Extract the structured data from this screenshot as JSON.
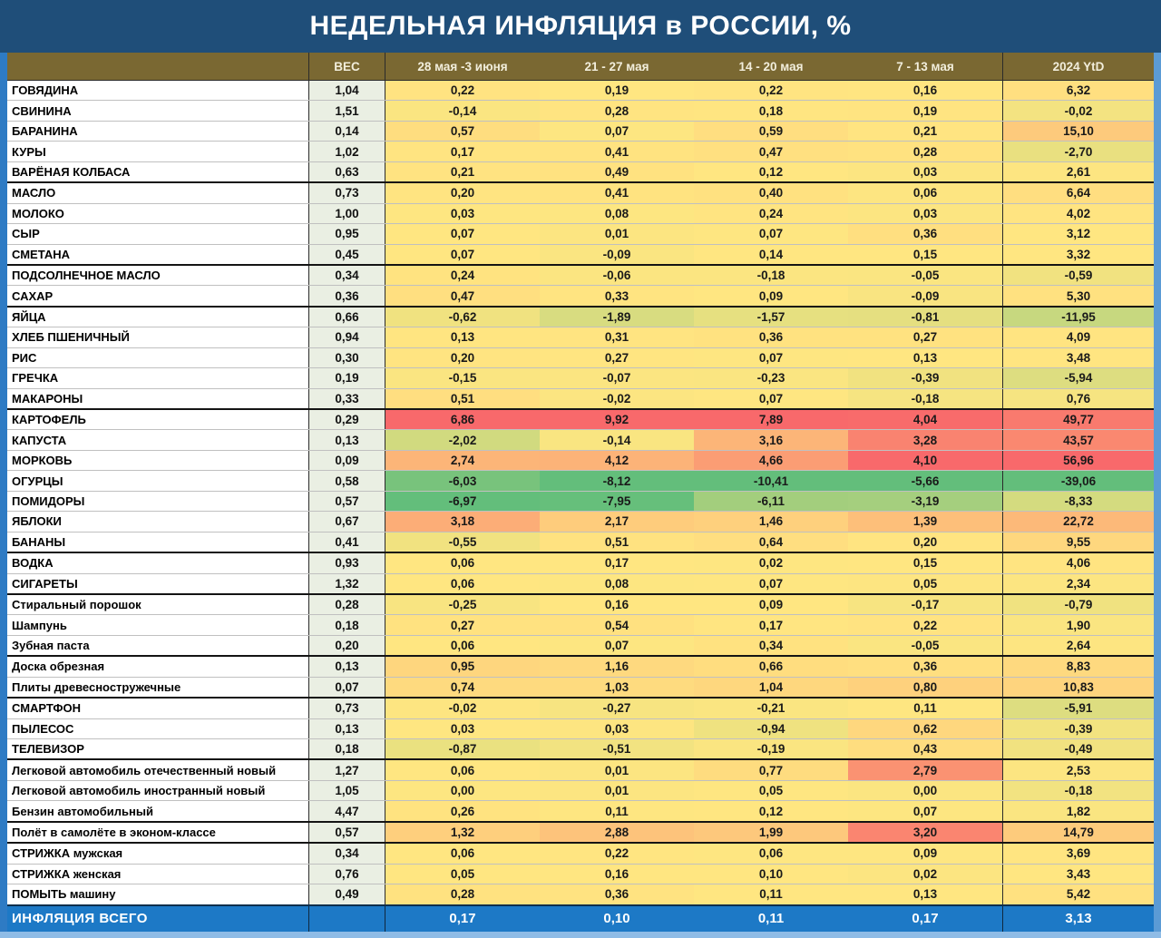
{
  "chart_data": {
    "type": "heatmap",
    "title": "НЕДЕЛЬНАЯ ИНФЛЯЦИЯ в РОССИИ, %",
    "columns": [
      "ВЕС",
      "28 мая -3 июня",
      "21 - 27 мая",
      "14 - 20 мая",
      "7 - 13 мая",
      "2024 YtD"
    ],
    "legend_note": "cell fill = 3-color scale per column: green(min) / yellow(median) / red(max)",
    "rows": [
      {
        "label": "ГОВЯДИНА",
        "sep": false,
        "values": [
          "1,04",
          "0,22",
          "0,19",
          "0,22",
          "0,16",
          "6,32"
        ]
      },
      {
        "label": "СВИНИНА",
        "sep": false,
        "values": [
          "1,51",
          "-0,14",
          "0,28",
          "0,18",
          "0,19",
          "-0,02"
        ]
      },
      {
        "label": "БАРАНИНА",
        "sep": false,
        "values": [
          "0,14",
          "0,57",
          "0,07",
          "0,59",
          "0,21",
          "15,10"
        ]
      },
      {
        "label": "КУРЫ",
        "sep": false,
        "values": [
          "1,02",
          "0,17",
          "0,41",
          "0,47",
          "0,28",
          "-2,70"
        ]
      },
      {
        "label": "ВАРЁНАЯ КОЛБАСА",
        "sep": false,
        "values": [
          "0,63",
          "0,21",
          "0,49",
          "0,12",
          "0,03",
          "2,61"
        ]
      },
      {
        "label": "МАСЛО",
        "sep": true,
        "values": [
          "0,73",
          "0,20",
          "0,41",
          "0,40",
          "0,06",
          "6,64"
        ]
      },
      {
        "label": "МОЛОКО",
        "sep": false,
        "values": [
          "1,00",
          "0,03",
          "0,08",
          "0,24",
          "0,03",
          "4,02"
        ]
      },
      {
        "label": "СЫР",
        "sep": false,
        "values": [
          "0,95",
          "0,07",
          "0,01",
          "0,07",
          "0,36",
          "3,12"
        ]
      },
      {
        "label": "СМЕТАНА",
        "sep": false,
        "values": [
          "0,45",
          "0,07",
          "-0,09",
          "0,14",
          "0,15",
          "3,32"
        ]
      },
      {
        "label": "ПОДСОЛНЕЧНОЕ МАСЛО",
        "sep": true,
        "values": [
          "0,34",
          "0,24",
          "-0,06",
          "-0,18",
          "-0,05",
          "-0,59"
        ]
      },
      {
        "label": "САХАР",
        "sep": false,
        "values": [
          "0,36",
          "0,47",
          "0,33",
          "0,09",
          "-0,09",
          "5,30"
        ]
      },
      {
        "label": "ЯЙЦА",
        "sep": true,
        "values": [
          "0,66",
          "-0,62",
          "-1,89",
          "-1,57",
          "-0,81",
          "-11,95"
        ]
      },
      {
        "label": "ХЛЕБ ПШЕНИЧНЫЙ",
        "sep": false,
        "values": [
          "0,94",
          "0,13",
          "0,31",
          "0,36",
          "0,27",
          "4,09"
        ]
      },
      {
        "label": "РИС",
        "sep": false,
        "values": [
          "0,30",
          "0,20",
          "0,27",
          "0,07",
          "0,13",
          "3,48"
        ]
      },
      {
        "label": "ГРЕЧКА",
        "sep": false,
        "values": [
          "0,19",
          "-0,15",
          "-0,07",
          "-0,23",
          "-0,39",
          "-5,94"
        ]
      },
      {
        "label": "МАКАРОНЫ",
        "sep": false,
        "values": [
          "0,33",
          "0,51",
          "-0,02",
          "0,07",
          "-0,18",
          "0,76"
        ]
      },
      {
        "label": "КАРТОФЕЛЬ",
        "sep": true,
        "values": [
          "0,29",
          "6,86",
          "9,92",
          "7,89",
          "4,04",
          "49,77"
        ]
      },
      {
        "label": "КАПУСТА",
        "sep": false,
        "values": [
          "0,13",
          "-2,02",
          "-0,14",
          "3,16",
          "3,28",
          "43,57"
        ]
      },
      {
        "label": "МОРКОВЬ",
        "sep": false,
        "values": [
          "0,09",
          "2,74",
          "4,12",
          "4,66",
          "4,10",
          "56,96"
        ]
      },
      {
        "label": "ОГУРЦЫ",
        "sep": false,
        "values": [
          "0,58",
          "-6,03",
          "-8,12",
          "-10,41",
          "-5,66",
          "-39,06"
        ]
      },
      {
        "label": "ПОМИДОРЫ",
        "sep": false,
        "values": [
          "0,57",
          "-6,97",
          "-7,95",
          "-6,11",
          "-3,19",
          "-8,33"
        ]
      },
      {
        "label": "ЯБЛОКИ",
        "sep": false,
        "values": [
          "0,67",
          "3,18",
          "2,17",
          "1,46",
          "1,39",
          "22,72"
        ]
      },
      {
        "label": "БАНАНЫ",
        "sep": false,
        "values": [
          "0,41",
          "-0,55",
          "0,51",
          "0,64",
          "0,20",
          "9,55"
        ]
      },
      {
        "label": "ВОДКА",
        "sep": true,
        "values": [
          "0,93",
          "0,06",
          "0,17",
          "0,02",
          "0,15",
          "4,06"
        ]
      },
      {
        "label": "СИГАРЕТЫ",
        "sep": false,
        "values": [
          "1,32",
          "0,06",
          "0,08",
          "0,07",
          "0,05",
          "2,34"
        ]
      },
      {
        "label": "Стиральный порошок",
        "sep": true,
        "values": [
          "0,28",
          "-0,25",
          "0,16",
          "0,09",
          "-0,17",
          "-0,79"
        ]
      },
      {
        "label": "Шампунь",
        "sep": false,
        "values": [
          "0,18",
          "0,27",
          "0,54",
          "0,17",
          "0,22",
          "1,90"
        ]
      },
      {
        "label": "Зубная паста",
        "sep": false,
        "values": [
          "0,20",
          "0,06",
          "0,07",
          "0,34",
          "-0,05",
          "2,64"
        ]
      },
      {
        "label": "Доска обрезная",
        "sep": true,
        "values": [
          "0,13",
          "0,95",
          "1,16",
          "0,66",
          "0,36",
          "8,83"
        ]
      },
      {
        "label": "Плиты древесностружечные",
        "sep": false,
        "values": [
          "0,07",
          "0,74",
          "1,03",
          "1,04",
          "0,80",
          "10,83"
        ]
      },
      {
        "label": "СМАРТФОН",
        "sep": true,
        "values": [
          "0,73",
          "-0,02",
          "-0,27",
          "-0,21",
          "0,11",
          "-5,91"
        ]
      },
      {
        "label": "ПЫЛЕСОС",
        "sep": false,
        "values": [
          "0,13",
          "0,03",
          "0,03",
          "-0,94",
          "0,62",
          "-0,39"
        ]
      },
      {
        "label": "ТЕЛЕВИЗОР",
        "sep": false,
        "values": [
          "0,18",
          "-0,87",
          "-0,51",
          "-0,19",
          "0,43",
          "-0,49"
        ]
      },
      {
        "label": "Легковой автомобиль отечественный новый",
        "sep": true,
        "values": [
          "1,27",
          "0,06",
          "0,01",
          "0,77",
          "2,79",
          "2,53"
        ]
      },
      {
        "label": "Легковой автомобиль иностранный новый",
        "sep": false,
        "values": [
          "1,05",
          "0,00",
          "0,01",
          "0,05",
          "0,00",
          "-0,18"
        ]
      },
      {
        "label": "Бензин автомобильный",
        "sep": false,
        "values": [
          "4,47",
          "0,26",
          "0,11",
          "0,12",
          "0,07",
          "1,82"
        ]
      },
      {
        "label": "Полёт в самолёте в эконом-классе",
        "sep": true,
        "values": [
          "0,57",
          "1,32",
          "2,88",
          "1,99",
          "3,20",
          "14,79"
        ]
      },
      {
        "label": "СТРИЖКА мужская",
        "sep": true,
        "values": [
          "0,34",
          "0,06",
          "0,22",
          "0,06",
          "0,09",
          "3,69"
        ]
      },
      {
        "label": "СТРИЖКА женская",
        "sep": false,
        "values": [
          "0,76",
          "0,05",
          "0,16",
          "0,10",
          "0,02",
          "3,43"
        ]
      },
      {
        "label": "ПОМЫТЬ машину",
        "sep": false,
        "values": [
          "0,49",
          "0,28",
          "0,36",
          "0,11",
          "0,13",
          "5,42"
        ]
      }
    ],
    "total_row": {
      "label": "ИНФЛЯЦИЯ ВСЕГО",
      "values": [
        "",
        "0,17",
        "0,10",
        "0,11",
        "0,17",
        "3,13"
      ]
    }
  },
  "colors": {
    "title_bg": "#1F4E79",
    "header_bg": "#7A6832",
    "weight_bg": "#EAEFE3",
    "total_bg": "#1D79C6",
    "strip_left": "#2E7BC4",
    "strip_right": "#5B9BD5",
    "page_bg": "#8FBCE6",
    "scale_min": "#63BE7B",
    "scale_mid": "#FFE681",
    "scale_max": "#F8696B"
  }
}
